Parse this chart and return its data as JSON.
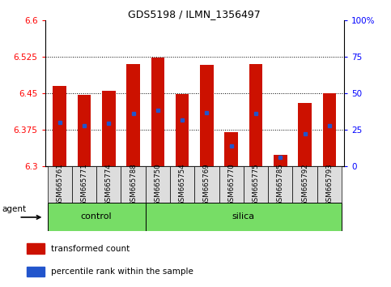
{
  "title": "GDS5198 / ILMN_1356497",
  "samples": [
    "GSM665761",
    "GSM665771",
    "GSM665774",
    "GSM665788",
    "GSM665750",
    "GSM665754",
    "GSM665769",
    "GSM665770",
    "GSM665775",
    "GSM665785",
    "GSM665792",
    "GSM665793"
  ],
  "groups": [
    "control",
    "control",
    "control",
    "control",
    "silica",
    "silica",
    "silica",
    "silica",
    "silica",
    "silica",
    "silica",
    "silica"
  ],
  "transformed_count": [
    6.465,
    6.447,
    6.455,
    6.51,
    6.524,
    6.449,
    6.508,
    6.37,
    6.51,
    6.323,
    6.43,
    6.45
  ],
  "percentile_rank": [
    6.39,
    6.383,
    6.388,
    6.408,
    6.415,
    6.395,
    6.41,
    6.342,
    6.408,
    6.318,
    6.367,
    6.383
  ],
  "ymin": 6.3,
  "ymax": 6.6,
  "y_ticks_left": [
    6.3,
    6.375,
    6.45,
    6.525,
    6.6
  ],
  "y_ticks_left_labels": [
    "6.3",
    "6.375",
    "6.45",
    "6.525",
    "6.6"
  ],
  "y_ticks_right_labels": [
    "0",
    "25",
    "50",
    "75",
    "100%"
  ],
  "y_ticks_right_vals": [
    6.3,
    6.375,
    6.45,
    6.525,
    6.6
  ],
  "dotted_lines": [
    6.375,
    6.45,
    6.525
  ],
  "bar_color": "#cc1100",
  "dot_color": "#2255cc",
  "bar_bottom": 6.3,
  "group_color": "#77dd66",
  "bar_width": 0.55,
  "agent_label": "agent",
  "legend_items": [
    "transformed count",
    "percentile rank within the sample"
  ],
  "legend_colors": [
    "#cc1100",
    "#2255cc"
  ]
}
